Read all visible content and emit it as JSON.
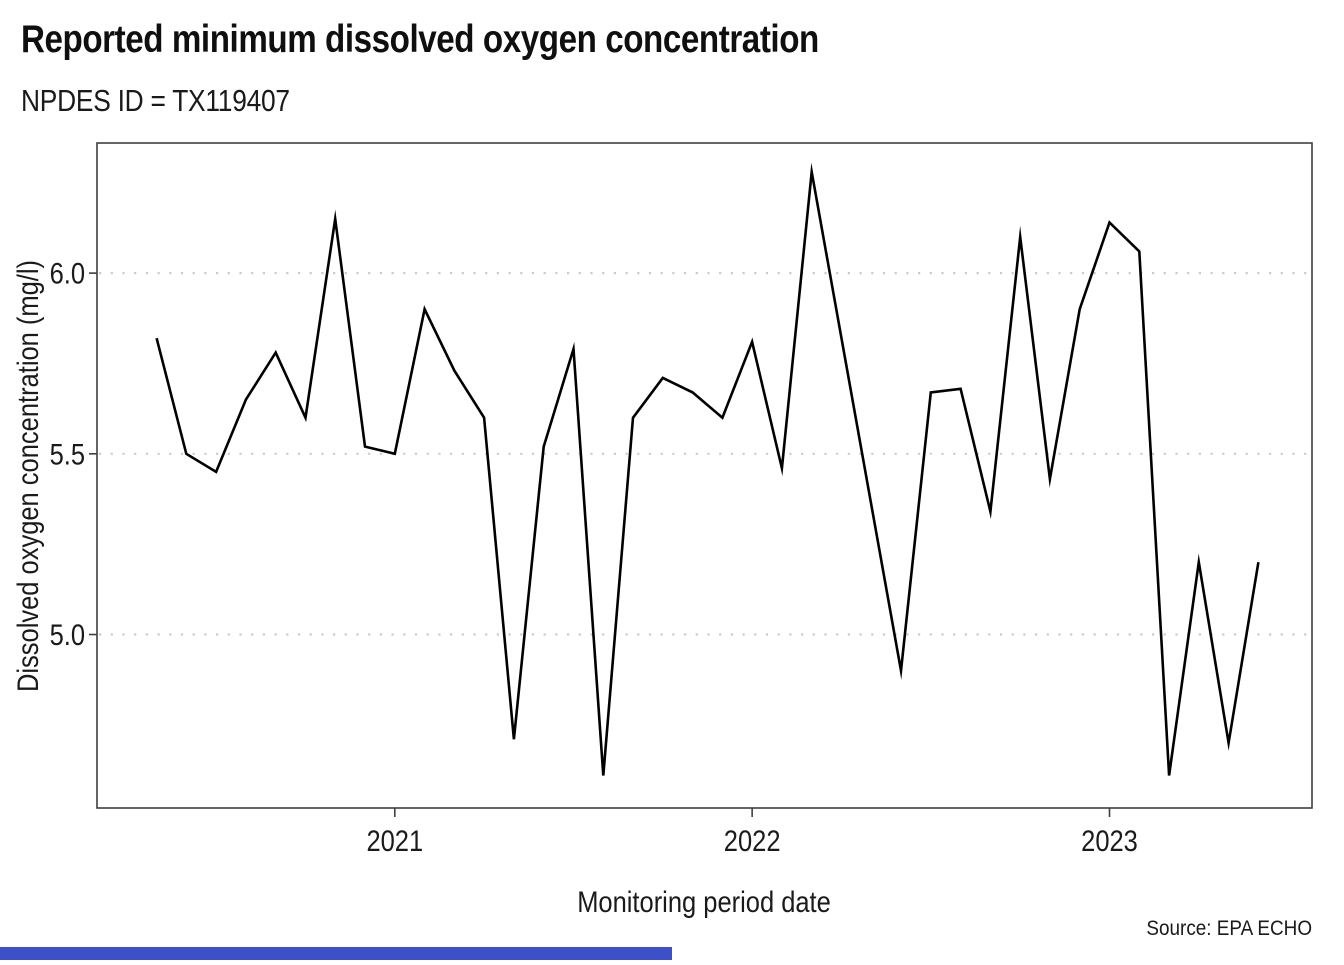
{
  "header": {
    "title": "Reported minimum dissolved oxygen concentration",
    "subtitle": "NPDES ID = TX119407"
  },
  "footer": {
    "source_label": "Source: EPA ECHO",
    "accent_bar_color": "#3d50c8"
  },
  "chart_data": {
    "type": "line",
    "title": "Reported minimum dissolved oxygen concentration",
    "subtitle": "NPDES ID = TX119407",
    "xlabel": "Monitoring period date",
    "ylabel": "Dissolved oxygen concentration (mg/l)",
    "source": "Source: EPA ECHO",
    "line_color": "#000000",
    "grid": "horizontal dotted",
    "grid_color": "#cbcbcb",
    "axis_color": "#3f3f3f",
    "legend": "none",
    "xlim_months_since_jan2020": [
      2.0,
      42.8
    ],
    "ylim": [
      4.52,
      6.36
    ],
    "x_ticks": [
      {
        "label": "2021",
        "month_serial": 12
      },
      {
        "label": "2022",
        "month_serial": 24
      },
      {
        "label": "2023",
        "month_serial": 36
      }
    ],
    "y_ticks": [
      {
        "label": "5.0",
        "value": 5.0
      },
      {
        "label": "5.5",
        "value": 5.5
      },
      {
        "label": "6.0",
        "value": 6.0
      }
    ],
    "series": [
      {
        "name": "Reported minimum dissolved oxygen",
        "points": [
          {
            "date": "2020-05",
            "value": 5.82
          },
          {
            "date": "2020-06",
            "value": 5.5
          },
          {
            "date": "2020-07",
            "value": 5.45
          },
          {
            "date": "2020-08",
            "value": 5.65
          },
          {
            "date": "2020-09",
            "value": 5.78
          },
          {
            "date": "2020-10",
            "value": 5.6
          },
          {
            "date": "2020-11",
            "value": 6.15
          },
          {
            "date": "2020-12",
            "value": 5.52
          },
          {
            "date": "2021-01",
            "value": 5.5
          },
          {
            "date": "2021-02",
            "value": 5.9
          },
          {
            "date": "2021-03",
            "value": 5.73
          },
          {
            "date": "2021-04",
            "value": 5.6
          },
          {
            "date": "2021-05",
            "value": 4.71
          },
          {
            "date": "2021-06",
            "value": 5.52
          },
          {
            "date": "2021-07",
            "value": 5.79
          },
          {
            "date": "2021-08",
            "value": 4.61
          },
          {
            "date": "2021-09",
            "value": 5.6
          },
          {
            "date": "2021-10",
            "value": 5.71
          },
          {
            "date": "2021-11",
            "value": 5.67
          },
          {
            "date": "2021-12",
            "value": 5.6
          },
          {
            "date": "2022-01",
            "value": 5.81
          },
          {
            "date": "2022-02",
            "value": 5.46
          },
          {
            "date": "2022-03",
            "value": 6.28
          },
          {
            "date": "2022-06",
            "value": 4.9
          },
          {
            "date": "2022-07",
            "value": 5.67
          },
          {
            "date": "2022-08",
            "value": 5.68
          },
          {
            "date": "2022-09",
            "value": 5.34
          },
          {
            "date": "2022-10",
            "value": 6.1
          },
          {
            "date": "2022-11",
            "value": 5.43
          },
          {
            "date": "2022-12",
            "value": 5.9
          },
          {
            "date": "2023-01",
            "value": 6.14
          },
          {
            "date": "2023-02",
            "value": 6.06
          },
          {
            "date": "2023-03",
            "value": 4.61
          },
          {
            "date": "2023-04",
            "value": 5.2
          },
          {
            "date": "2023-05",
            "value": 4.7
          },
          {
            "date": "2023-06",
            "value": 5.2
          }
        ]
      }
    ]
  }
}
